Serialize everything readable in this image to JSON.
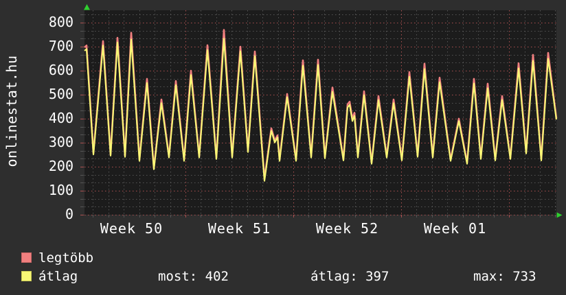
{
  "site_label": "onlinestat.hu",
  "colors": {
    "page_bg": "#2e2e2e",
    "plot_bg": "#1c1c1c",
    "grid_minor": "#555555",
    "grid_major": "#ad5050",
    "axis_text": "#ffffff",
    "arrow": "#2fcf2f",
    "series_max": "#f07f7f",
    "series_avg": "#f7f775"
  },
  "legend": {
    "items": [
      {
        "id": "legtobb",
        "label": "legtöbb",
        "color": "#f07f7f",
        "border": "#cc6666"
      },
      {
        "id": "atlag",
        "label": "átlag",
        "color": "#f7f775",
        "border": "#c9c955"
      }
    ]
  },
  "stats": {
    "most": "most: 402",
    "atlag": "átlag: 397",
    "max": "max: 733"
  },
  "chart_data": {
    "type": "line",
    "x_axis": {
      "labels": [
        "Week 50",
        "Week 51",
        "Week 52",
        "Week 01"
      ],
      "minor_grid": "daily",
      "major_grid": "weekly"
    },
    "y_axis": {
      "min": 0,
      "max": 800,
      "tick_step": 100,
      "tick_labels": [
        "800",
        "700",
        "600",
        "500",
        "400",
        "300",
        "200",
        "100",
        "0"
      ]
    },
    "legend_position": "bottom-left",
    "grid": true,
    "points_format": "[x_px_along_687px_axis, value]",
    "series": [
      {
        "name": "legtöbb",
        "color": "#f07f7f",
        "points": [
          [
            0,
            697
          ],
          [
            3,
            705
          ],
          [
            13,
            257
          ],
          [
            27,
            723
          ],
          [
            38,
            251
          ],
          [
            48,
            737
          ],
          [
            59,
            246
          ],
          [
            68,
            758
          ],
          [
            80,
            229
          ],
          [
            91,
            566
          ],
          [
            101,
            194
          ],
          [
            112,
            480
          ],
          [
            123,
            243
          ],
          [
            133,
            557
          ],
          [
            145,
            229
          ],
          [
            155,
            600
          ],
          [
            167,
            243
          ],
          [
            179,
            706
          ],
          [
            192,
            237
          ],
          [
            203,
            770
          ],
          [
            215,
            243
          ],
          [
            227,
            700
          ],
          [
            238,
            266
          ],
          [
            248,
            680
          ],
          [
            262,
            150
          ],
          [
            272,
            360
          ],
          [
            277,
            309
          ],
          [
            281,
            331
          ],
          [
            284,
            229
          ],
          [
            295,
            503
          ],
          [
            308,
            229
          ],
          [
            318,
            643
          ],
          [
            330,
            243
          ],
          [
            340,
            646
          ],
          [
            350,
            240
          ],
          [
            361,
            530
          ],
          [
            377,
            231
          ],
          [
            383,
            460
          ],
          [
            386,
            471
          ],
          [
            390,
            400
          ],
          [
            393,
            425
          ],
          [
            398,
            243
          ],
          [
            407,
            514
          ],
          [
            418,
            217
          ],
          [
            428,
            494
          ],
          [
            440,
            243
          ],
          [
            450,
            480
          ],
          [
            462,
            231
          ],
          [
            473,
            594
          ],
          [
            485,
            246
          ],
          [
            495,
            629
          ],
          [
            507,
            243
          ],
          [
            517,
            571
          ],
          [
            533,
            229
          ],
          [
            545,
            400
          ],
          [
            557,
            217
          ],
          [
            567,
            566
          ],
          [
            577,
            237
          ],
          [
            587,
            546
          ],
          [
            598,
            231
          ],
          [
            608,
            494
          ],
          [
            620,
            237
          ],
          [
            632,
            631
          ],
          [
            643,
            260
          ],
          [
            653,
            666
          ],
          [
            665,
            231
          ],
          [
            675,
            674
          ],
          [
            687,
            402
          ]
        ]
      },
      {
        "name": "átlag",
        "color": "#f7f775",
        "points": [
          [
            0,
            683
          ],
          [
            3,
            690
          ],
          [
            13,
            251
          ],
          [
            27,
            705
          ],
          [
            38,
            246
          ],
          [
            48,
            718
          ],
          [
            59,
            241
          ],
          [
            68,
            730
          ],
          [
            80,
            224
          ],
          [
            91,
            549
          ],
          [
            101,
            189
          ],
          [
            112,
            465
          ],
          [
            123,
            238
          ],
          [
            133,
            540
          ],
          [
            145,
            224
          ],
          [
            155,
            582
          ],
          [
            167,
            238
          ],
          [
            179,
            686
          ],
          [
            192,
            232
          ],
          [
            203,
            733
          ],
          [
            215,
            238
          ],
          [
            227,
            681
          ],
          [
            238,
            261
          ],
          [
            248,
            661
          ],
          [
            262,
            141
          ],
          [
            272,
            350
          ],
          [
            277,
            301
          ],
          [
            281,
            322
          ],
          [
            284,
            224
          ],
          [
            295,
            490
          ],
          [
            308,
            224
          ],
          [
            318,
            621
          ],
          [
            330,
            238
          ],
          [
            340,
            624
          ],
          [
            350,
            235
          ],
          [
            361,
            512
          ],
          [
            377,
            226
          ],
          [
            383,
            447
          ],
          [
            386,
            458
          ],
          [
            390,
            390
          ],
          [
            393,
            412
          ],
          [
            398,
            238
          ],
          [
            407,
            498
          ],
          [
            418,
            212
          ],
          [
            428,
            478
          ],
          [
            440,
            238
          ],
          [
            450,
            465
          ],
          [
            462,
            226
          ],
          [
            473,
            575
          ],
          [
            485,
            241
          ],
          [
            495,
            607
          ],
          [
            507,
            238
          ],
          [
            517,
            552
          ],
          [
            533,
            224
          ],
          [
            545,
            390
          ],
          [
            557,
            212
          ],
          [
            567,
            547
          ],
          [
            577,
            232
          ],
          [
            587,
            527
          ],
          [
            598,
            226
          ],
          [
            608,
            478
          ],
          [
            620,
            232
          ],
          [
            632,
            610
          ],
          [
            643,
            255
          ],
          [
            653,
            641
          ],
          [
            665,
            226
          ],
          [
            675,
            650
          ],
          [
            687,
            397
          ]
        ]
      }
    ]
  }
}
